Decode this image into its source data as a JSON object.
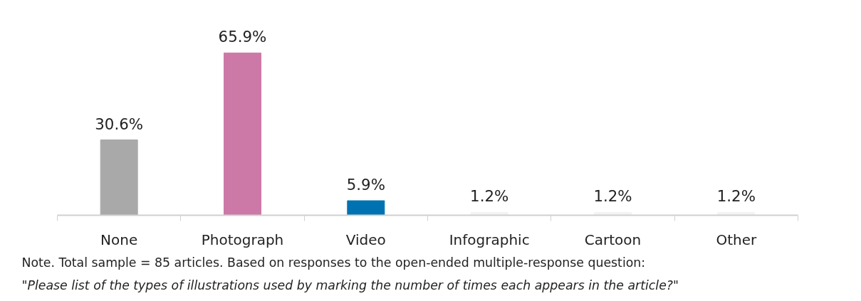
{
  "chart_data": {
    "type": "bar",
    "categories": [
      "None",
      "Photograph",
      "Video",
      "Infographic",
      "Cartoon",
      "Other"
    ],
    "values": [
      30.6,
      65.9,
      5.9,
      1.2,
      1.2,
      1.2
    ],
    "colors": [
      "#a9a9a9",
      "#cc79a7",
      "#0072b2",
      "#f3f3f3",
      "#f3f3f3",
      "#f3f3f3"
    ],
    "value_labels": [
      "30.6%",
      "65.9%",
      "5.9%",
      "1.2%",
      "1.2%",
      "1.2%"
    ],
    "tick_labels": "x",
    "grid": false,
    "annotations": [
      "Note. Total sample = 85 articles. Based on responses to the open-ended multiple-response question:",
      "\"Please list of the types of illustrations used by marking the number of times each appears in the article?\""
    ]
  }
}
